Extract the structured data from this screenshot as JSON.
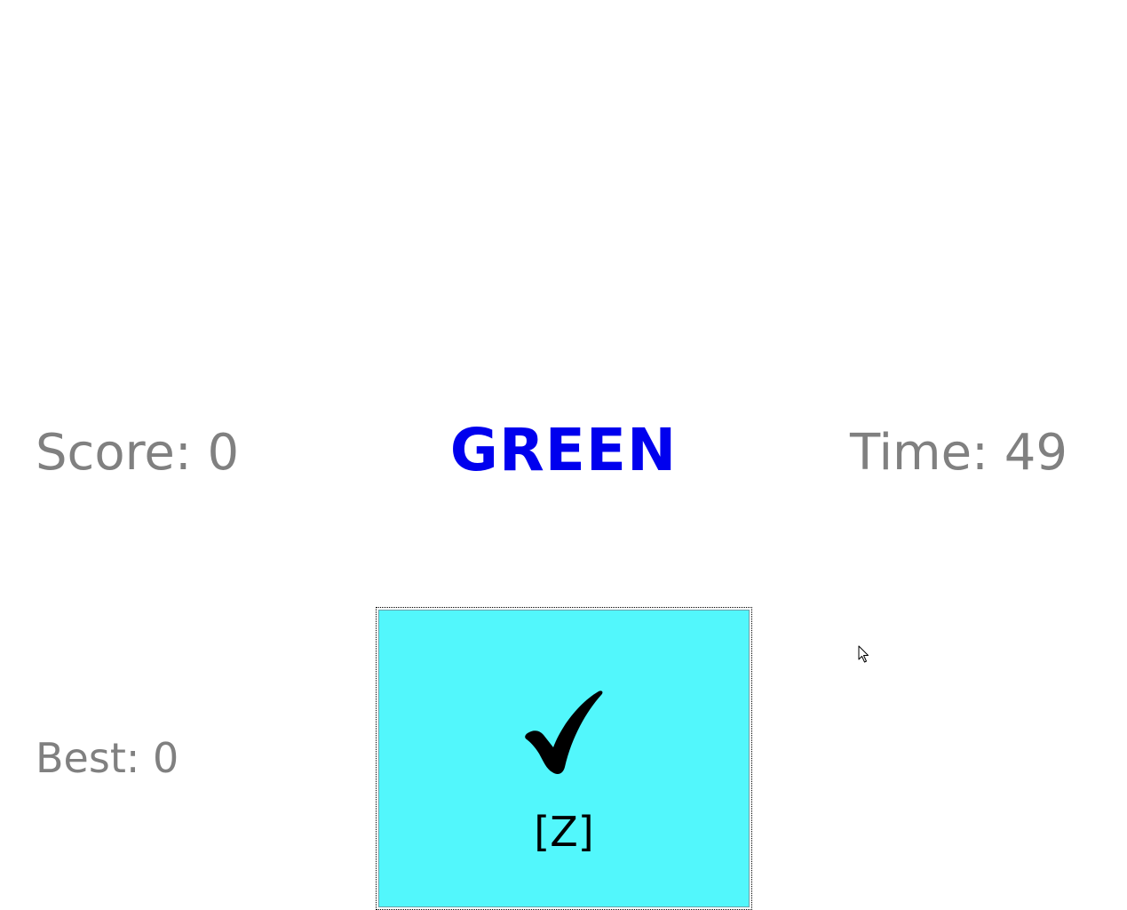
{
  "game": {
    "score_text": "Score: 0",
    "time_text": "Time: 49",
    "best_text": "Best: 0",
    "word": "GREEN",
    "word_color": "#0000ee"
  },
  "answer_button": {
    "icon": "checkmark-icon",
    "key_label": "[Z]",
    "fill_color": "#52f7fc"
  }
}
